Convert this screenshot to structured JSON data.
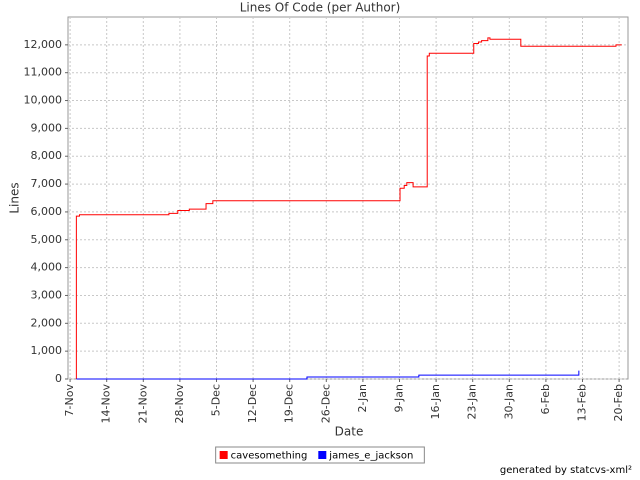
{
  "chart_data": {
    "type": "step",
    "title": "Lines Of Code (per Author)",
    "x_label": "Date",
    "y_label": "Lines",
    "xlim": [
      -0.4,
      106.7
    ],
    "ylim": [
      0,
      13000
    ],
    "grid": true,
    "legend": "bottom",
    "xticks": [
      {
        "value": 0,
        "label": "7-Nov"
      },
      {
        "value": 7,
        "label": "14-Nov"
      },
      {
        "value": 14,
        "label": "21-Nov"
      },
      {
        "value": 21,
        "label": "28-Nov"
      },
      {
        "value": 28,
        "label": "5-Dec"
      },
      {
        "value": 35,
        "label": "12-Dec"
      },
      {
        "value": 42,
        "label": "19-Dec"
      },
      {
        "value": 49,
        "label": "26-Dec"
      },
      {
        "value": 56,
        "label": "2-Jan"
      },
      {
        "value": 63,
        "label": "9-Jan"
      },
      {
        "value": 70,
        "label": "16-Jan"
      },
      {
        "value": 77,
        "label": "23-Jan"
      },
      {
        "value": 84,
        "label": "30-Jan"
      },
      {
        "value": 91,
        "label": "6-Feb"
      },
      {
        "value": 98,
        "label": "13-Feb"
      },
      {
        "value": 105,
        "label": "20-Feb"
      }
    ],
    "yticks": [
      0,
      {
        "value": 1000,
        "label": "1,000"
      },
      {
        "value": 2000,
        "label": "2,000"
      },
      {
        "value": 3000,
        "label": "3,000"
      },
      {
        "value": 4000,
        "label": "4,000"
      },
      {
        "value": 5000,
        "label": "5,000"
      },
      {
        "value": 6000,
        "label": "6,000"
      },
      {
        "value": 7000,
        "label": "7,000"
      },
      {
        "value": 8000,
        "label": "8,000"
      },
      {
        "value": 9000,
        "label": "9,000"
      },
      {
        "value": 10000,
        "label": "10,000"
      },
      {
        "value": 11000,
        "label": "11,000"
      },
      {
        "value": 12000,
        "label": "12,000"
      }
    ],
    "series": [
      {
        "name": "cavesomething",
        "color": "#ff0000",
        "x": [
          1.2,
          1.2,
          1.8,
          1.8,
          18.9,
          18.9,
          20.6,
          20.6,
          22.8,
          22.8,
          26,
          26,
          27.3,
          27.3,
          63.1,
          63.1,
          63.9,
          63.9,
          64.4,
          64.4,
          65.6,
          65.6,
          68.3,
          68.3,
          68.7,
          68.7,
          77.2,
          77.2,
          78.1,
          78.1,
          78.7,
          78.7,
          79.9,
          79.9,
          80.3,
          80.3,
          86.2,
          86.2,
          104.4,
          104.4,
          105.5
        ],
        "values": [
          0,
          5850,
          5850,
          5900,
          5900,
          5950,
          5950,
          6050,
          6050,
          6100,
          6100,
          6300,
          6300,
          6400,
          6400,
          6850,
          6850,
          6950,
          6950,
          7050,
          7050,
          6900,
          6900,
          11600,
          11600,
          11700,
          11700,
          12050,
          12050,
          12100,
          12100,
          12150,
          12150,
          12250,
          12250,
          12200,
          12200,
          11950,
          11950,
          12000,
          12000
        ]
      },
      {
        "name": "james_e_jackson",
        "color": "#0000ff",
        "x": [
          1.2,
          45.3,
          45.3,
          66.7,
          66.7,
          97.3,
          97.3
        ],
        "values": [
          0,
          0,
          70,
          70,
          140,
          140,
          300
        ]
      }
    ]
  },
  "footer": "generated by statcvs-xml²"
}
